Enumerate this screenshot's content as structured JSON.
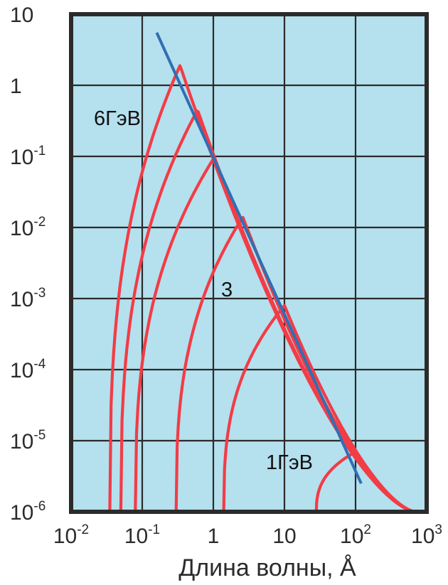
{
  "chart_data": {
    "type": "line",
    "xlabel": "Длина волны, Å",
    "ylabel": "",
    "title": "",
    "xscale": "log",
    "yscale": "log",
    "xlim": [
      0.01,
      1000
    ],
    "ylim": [
      1e-06,
      10
    ],
    "grid": true,
    "colors": {
      "background": "#b5e0ee",
      "grid": "#2b2b2b",
      "curves": "#f23c46",
      "line": "#2f6fb3"
    },
    "x_tick_labels": [
      {
        "value": 0.01,
        "base": "10",
        "exp": "-2"
      },
      {
        "value": 0.1,
        "base": "10",
        "exp": "-1"
      },
      {
        "value": 1,
        "base": "1",
        "exp": ""
      },
      {
        "value": 10,
        "base": "10",
        "exp": ""
      },
      {
        "value": 100,
        "base": "10",
        "exp": "2"
      },
      {
        "value": 1000,
        "base": "10",
        "exp": "3"
      }
    ],
    "y_tick_labels": [
      {
        "value": 10,
        "base": "10",
        "exp": ""
      },
      {
        "value": 1,
        "base": "1",
        "exp": ""
      },
      {
        "value": 0.1,
        "base": "10",
        "exp": "-1"
      },
      {
        "value": 0.01,
        "base": "10",
        "exp": "-2"
      },
      {
        "value": 0.001,
        "base": "10",
        "exp": "-3"
      },
      {
        "value": 0.0001,
        "base": "10",
        "exp": "-4"
      },
      {
        "value": 1e-05,
        "base": "10",
        "exp": "-5"
      },
      {
        "value": 1e-06,
        "base": "10",
        "exp": "-6"
      }
    ],
    "series": [
      {
        "peak_x": 0.34,
        "peak_y": 1.9,
        "left_edge_x": 0.035,
        "right_end_x": 700,
        "right_end_y": 1e-06
      },
      {
        "peak_x": 0.6,
        "peak_y": 0.45,
        "left_edge_x": 0.05,
        "right_end_x": 700,
        "right_end_y": 1e-06
      },
      {
        "peak_x": 1.0,
        "peak_y": 0.092,
        "left_edge_x": 0.08,
        "right_end_x": 700,
        "right_end_y": 1e-06
      },
      {
        "peak_x": 2.6,
        "peak_y": 0.014,
        "left_edge_x": 0.3,
        "right_end_x": 700,
        "right_end_y": 1e-06
      },
      {
        "peak_x": 10,
        "peak_y": 0.0008,
        "left_edge_x": 1.4,
        "right_end_x": 700,
        "right_end_y": 1e-06
      },
      {
        "peak_x": 100,
        "peak_y": 7e-06,
        "left_edge_x": 28,
        "right_end_x": 700,
        "right_end_y": 1e-06
      }
    ],
    "line": {
      "x": [
        0.16,
        120
      ],
      "y": [
        5.5,
        2.5e-06
      ]
    },
    "annotations": [
      "6ГэВ",
      "3",
      "1ГэВ"
    ]
  }
}
